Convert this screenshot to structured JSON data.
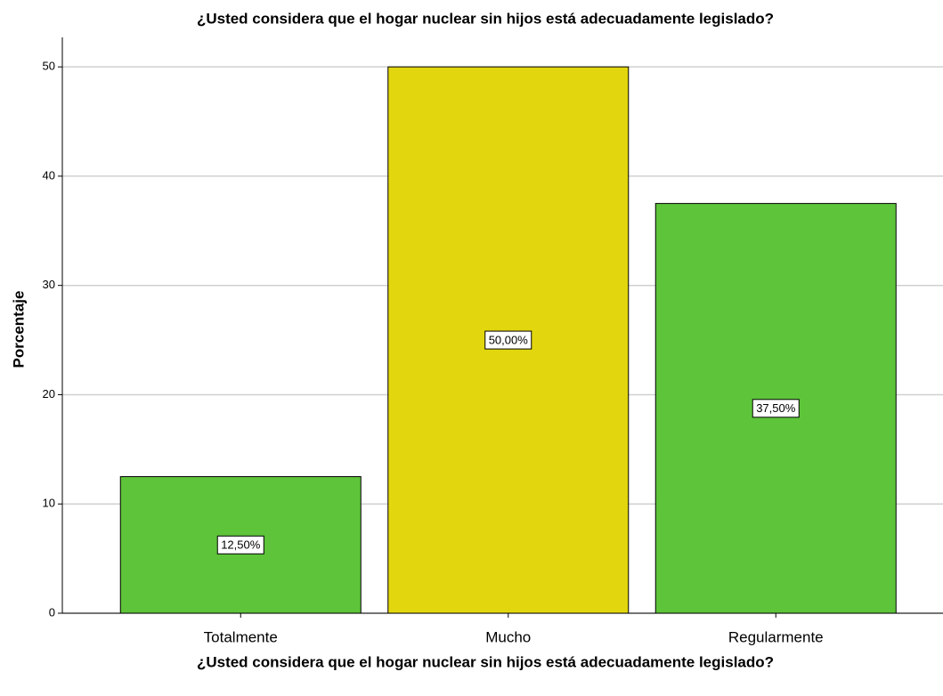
{
  "chart_data": {
    "type": "bar",
    "title": "¿Usted considera que el hogar nuclear sin hijos está adecuadamente legislado?",
    "x_label": "¿Usted considera que el hogar nuclear sin hijos está adecuadamente legislado?",
    "y_label": "Porcentaje",
    "categories": [
      "Totalmente",
      "Mucho",
      "Regularmente"
    ],
    "values": [
      12.5,
      50,
      37.5
    ],
    "value_labels": [
      "12,50%",
      "50,00%",
      "37,50%"
    ],
    "colors": [
      "#5ec43a",
      "#e2d60e",
      "#5ec43a"
    ],
    "ylim": [
      0,
      52.7
    ],
    "yticks": [
      0,
      10,
      20,
      30,
      40,
      50
    ],
    "grid": true
  }
}
